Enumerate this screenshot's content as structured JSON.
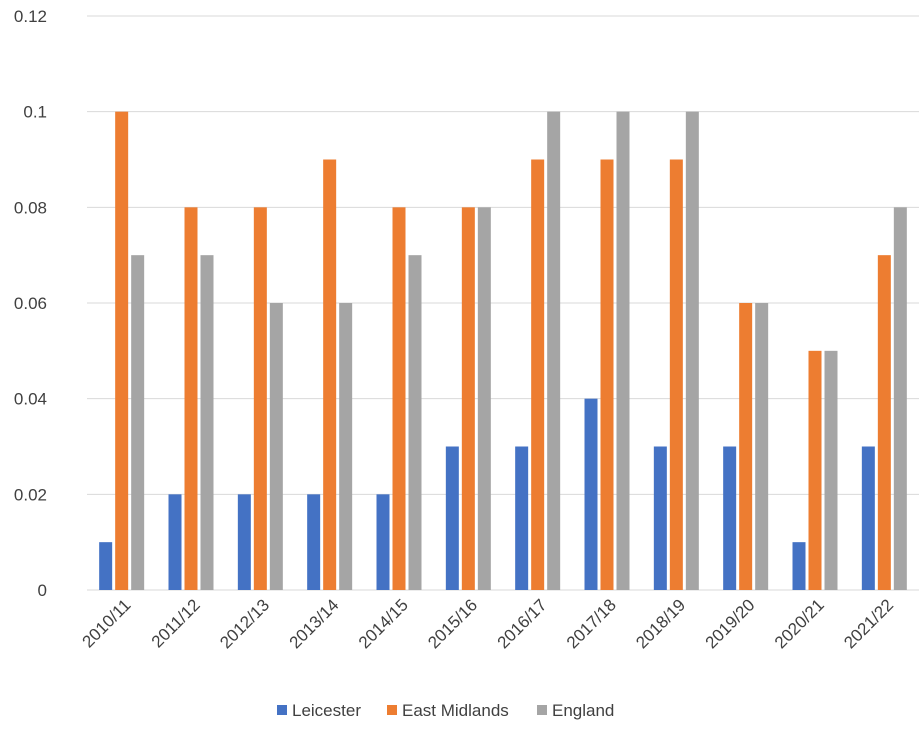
{
  "chart_data": {
    "type": "bar",
    "title": "",
    "xlabel": "",
    "ylabel": "",
    "ylim": [
      0,
      0.12
    ],
    "yticks": [
      "0",
      "0.02",
      "0.04",
      "0.06",
      "0.08",
      "0.1",
      "0.12"
    ],
    "grid": true,
    "legend_position": "bottom",
    "categories": [
      "2010/11",
      "2011/12",
      "2012/13",
      "2013/14",
      "2014/15",
      "2015/16",
      "2016/17",
      "2017/18",
      "2018/19",
      "2019/20",
      "2020/21",
      "2021/22"
    ],
    "series": [
      {
        "name": "Leicester",
        "color": "#4472c4",
        "values": [
          0.01,
          0.02,
          0.02,
          0.02,
          0.02,
          0.03,
          0.03,
          0.04,
          0.03,
          0.03,
          0.01,
          0.03
        ]
      },
      {
        "name": "East Midlands",
        "color": "#ed7d31",
        "values": [
          0.1,
          0.08,
          0.08,
          0.09,
          0.08,
          0.08,
          0.09,
          0.09,
          0.09,
          0.06,
          0.05,
          0.07
        ]
      },
      {
        "name": "England",
        "color": "#a5a5a5",
        "values": [
          0.07,
          0.07,
          0.06,
          0.06,
          0.07,
          0.08,
          0.1,
          0.1,
          0.1,
          0.06,
          0.05,
          0.08
        ]
      }
    ]
  }
}
